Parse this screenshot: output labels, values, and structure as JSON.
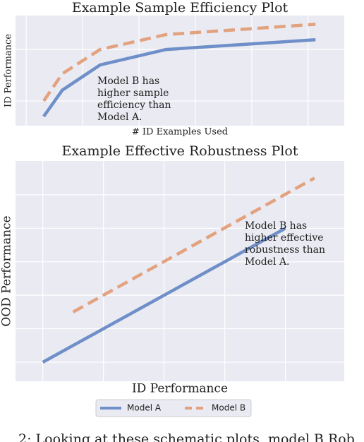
{
  "chart_data": [
    {
      "type": "line",
      "title": "Example Sample Efficiency Plot",
      "xlabel": "# ID Examples Used",
      "ylabel": "ID Performance",
      "xlim": [
        -0.19,
        5.64
      ],
      "ylim": [
        -0.48,
        1.66
      ],
      "xticks": [
        0,
        1,
        2,
        3,
        4,
        5
      ],
      "yticks": [
        0,
        1
      ],
      "grid": true,
      "tick_labels": false,
      "series": [
        {
          "name": "Model A",
          "color": "#6f8fc9",
          "dash": false,
          "x": [
            0.31,
            0.64,
            1.31,
            2.48,
            5.13
          ],
          "values": [
            -0.3,
            0.21,
            0.7,
            1.0,
            1.19
          ]
        },
        {
          "name": "Model B",
          "color": "#e3a27f",
          "dash": true,
          "x": [
            0.31,
            0.64,
            1.31,
            2.48,
            5.13
          ],
          "values": [
            0,
            0.53,
            1.0,
            1.29,
            1.49
          ]
        }
      ],
      "annotation": [
        "Model B has",
        "higher sample",
        "efficiency than",
        "Model A."
      ]
    },
    {
      "type": "line",
      "title": "Example Effective Robustness Plot",
      "xlabel": "ID Performance",
      "ylabel": "OOD Performance",
      "xlim": [
        -0.45,
        4.97
      ],
      "ylim": [
        -0.57,
        6.01
      ],
      "xticks": [
        0,
        1,
        2,
        3,
        4
      ],
      "yticks": [
        0,
        1,
        2,
        3,
        4,
        5
      ],
      "grid": true,
      "tick_labels": false,
      "legend": "bottom",
      "series": [
        {
          "name": "Model A",
          "color": "#6f8fc9",
          "dash": false,
          "x": [
            0,
            4
          ],
          "values": [
            0,
            4
          ]
        },
        {
          "name": "Model B",
          "color": "#e3a27f",
          "dash": true,
          "x": [
            0.5,
            4.48
          ],
          "values": [
            1.5,
            5.5
          ]
        }
      ],
      "annotation": [
        "Model B has",
        "higher effective",
        "robustness than",
        "Model A."
      ]
    }
  ],
  "caption": "2: Looking at these schematic plots, model B Rob"
}
